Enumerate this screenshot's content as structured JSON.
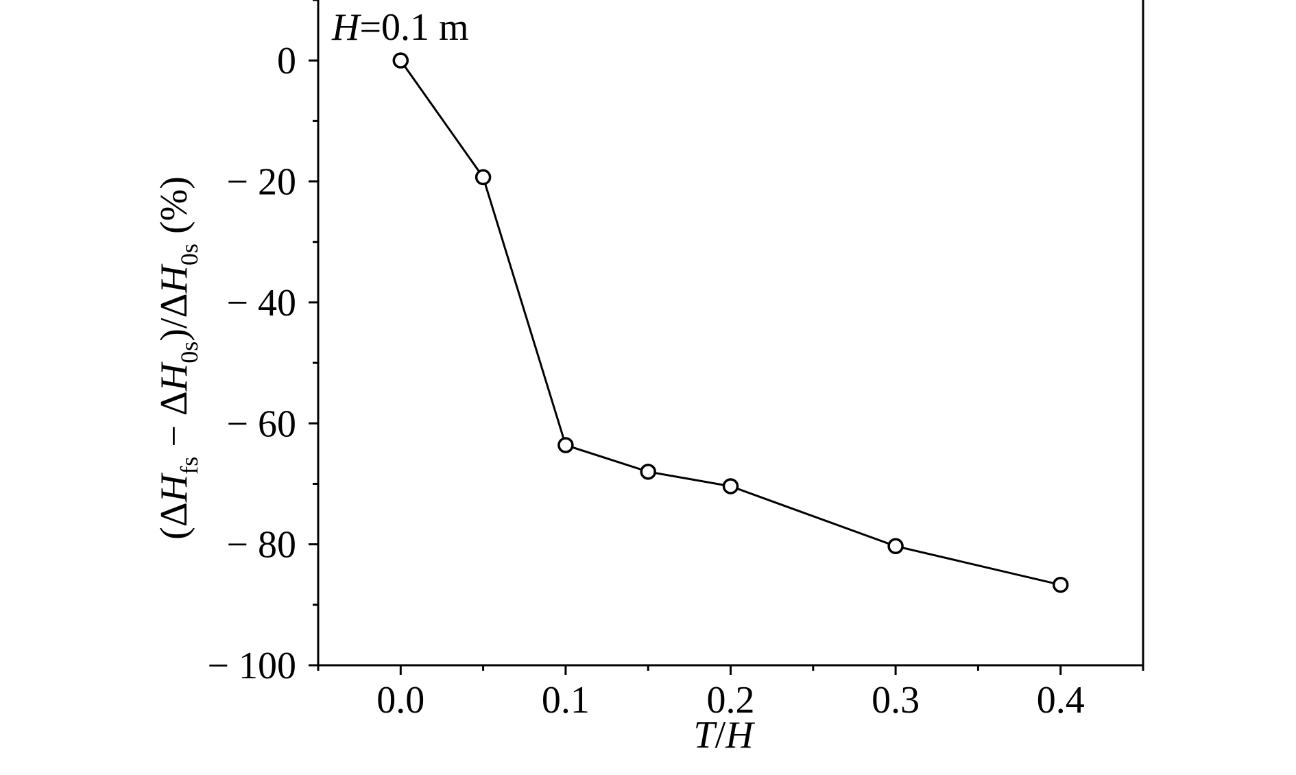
{
  "chart_data": {
    "type": "line",
    "x": [
      0.0,
      0.05,
      0.1,
      0.15,
      0.2,
      0.3,
      0.4
    ],
    "series": [
      {
        "values": [
          0,
          -19.3,
          -63.6,
          -68.0,
          -70.4,
          -80.3,
          -86.7
        ]
      }
    ],
    "xlim": [
      -0.05,
      0.45
    ],
    "ylim": [
      -100,
      10
    ],
    "x_ticks": [
      0.0,
      0.1,
      0.2,
      0.3,
      0.4
    ],
    "x_tick_labels": [
      "0.0",
      "0.1",
      "0.2",
      "0.3",
      "0.4"
    ],
    "y_ticks": [
      0,
      -20,
      -40,
      -60,
      -80,
      -100
    ],
    "y_tick_labels": [
      "0",
      "− 20",
      "− 40",
      "− 60",
      "− 80",
      "− 100"
    ],
    "xlabel": {
      "part1": "T",
      "part2": "/",
      "part3": "H"
    },
    "ylabel": {
      "open": "(Δ",
      "var1": "H",
      "sub1": "fs",
      "minus": " − Δ",
      "var2": "H",
      "sub2": "0s",
      "mid": ")/Δ",
      "var3": "H",
      "sub3": "0s",
      "close": " (%)"
    },
    "annotation": {
      "var": "H",
      "rest": "=0.1 m"
    },
    "grid": false,
    "marker": "open-circle",
    "colors": {
      "line": "#000000",
      "marker_fill": "#ffffff",
      "axis": "#000000"
    }
  }
}
